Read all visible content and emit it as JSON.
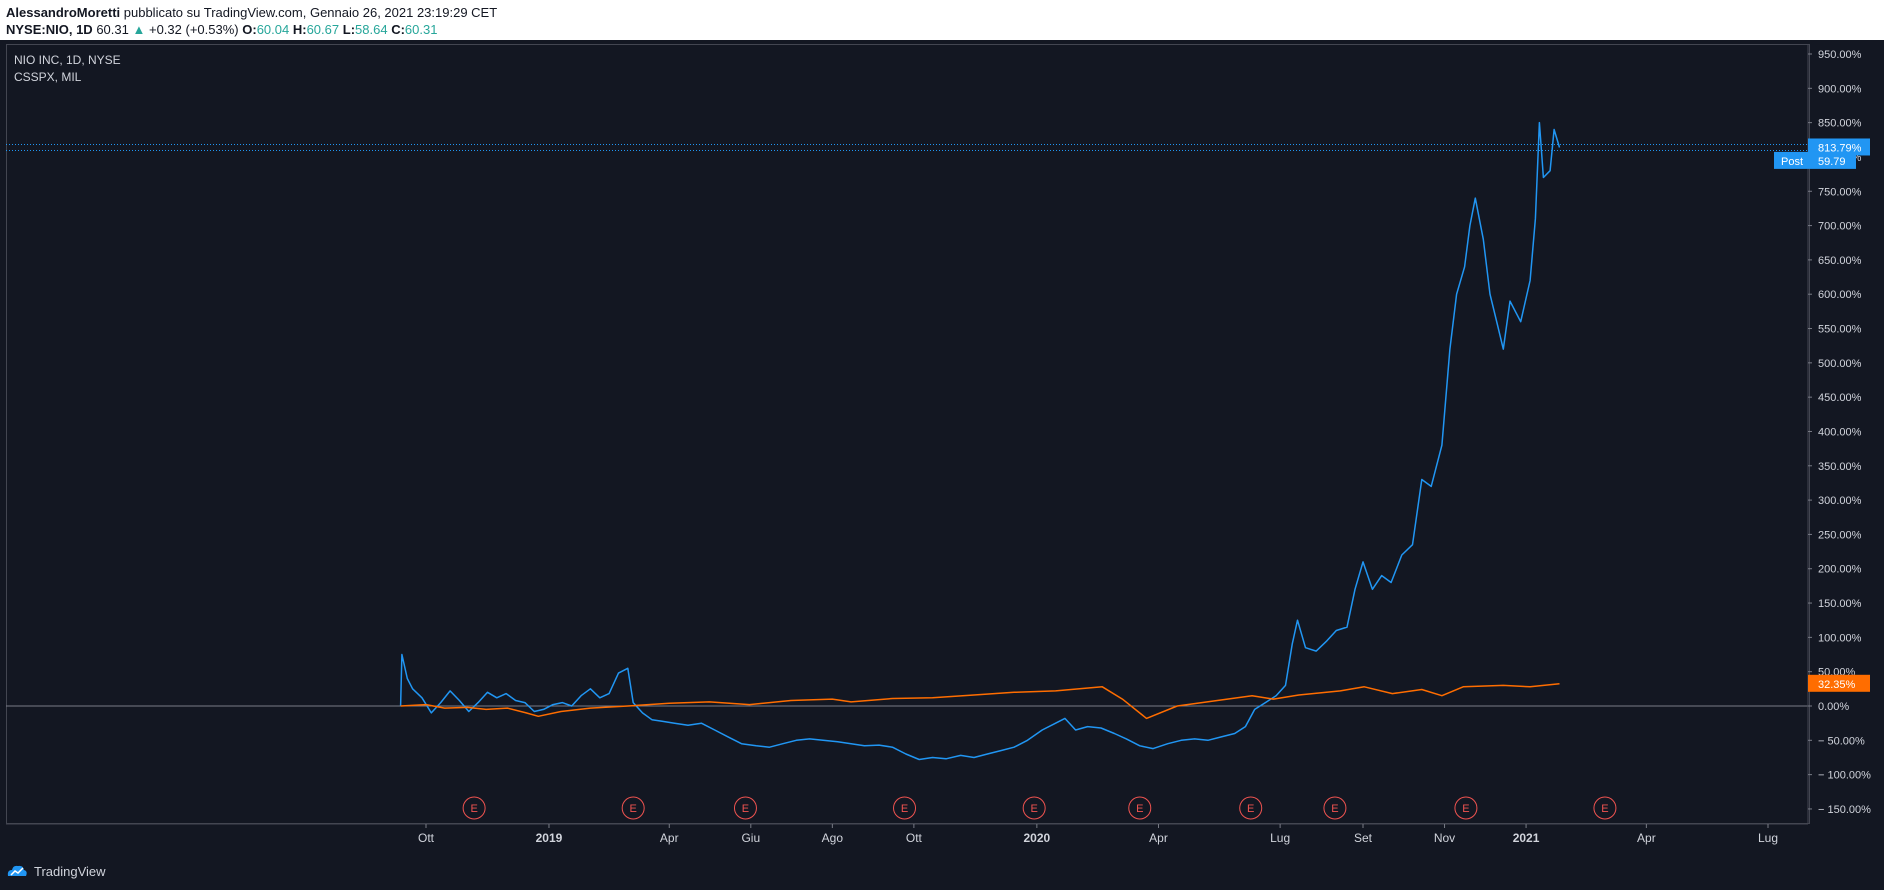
{
  "header": {
    "author": "AlessandroMoretti",
    "published": "pubblicato su TradingView.com, Gennaio 26, 2021 23:19:29 CET",
    "symbol": "NYSE:NIO, 1D",
    "last": "60.31",
    "change": "+0.32 (+0.53%)",
    "o_label": "O:",
    "o_value": "60.04",
    "h_label": "H:",
    "h_value": "60.67",
    "l_label": "L:",
    "l_value": "58.64",
    "c_label": "C:",
    "c_value": "60.31"
  },
  "legend": {
    "main": "NIO INC, 1D, NYSE",
    "compare": "CSSPX, MIL"
  },
  "footer": {
    "brand": "TradingView"
  },
  "colors": {
    "nio": "#2196f3",
    "csspx": "#ff6d00",
    "earnings": "#ef5350",
    "bg": "#131722"
  },
  "chart_data": {
    "type": "line",
    "xlabel": "",
    "ylabel": "",
    "ylim": [
      -170,
      960
    ],
    "y_ticks": [
      950,
      900,
      850,
      800,
      750,
      700,
      650,
      600,
      550,
      500,
      450,
      400,
      350,
      300,
      250,
      200,
      150,
      100,
      50,
      0,
      -50,
      -100,
      -150
    ],
    "y_tick_labels": [
      "950.00%",
      "900.00%",
      "850.00%",
      "800.00%",
      "750.00%",
      "700.00%",
      "650.00%",
      "600.00%",
      "550.00%",
      "500.00%",
      "450.00%",
      "400.00%",
      "350.00%",
      "300.00%",
      "250.00%",
      "200.00%",
      "150.00%",
      "100.00%",
      "50.00%",
      "0.00%",
      "− 50.00%",
      "− 100.00%",
      "− 150.00%"
    ],
    "x_range": [
      "2018-08-01",
      "2021-08-31"
    ],
    "x_ticks": [
      {
        "label": "Ott",
        "date": "2018-10-01",
        "bold": false
      },
      {
        "label": "2019",
        "date": "2019-01-01",
        "bold": true
      },
      {
        "label": "Apr",
        "date": "2019-04-01",
        "bold": false
      },
      {
        "label": "Giu",
        "date": "2019-06-01",
        "bold": false
      },
      {
        "label": "Ago",
        "date": "2019-08-01",
        "bold": false
      },
      {
        "label": "Ott",
        "date": "2019-10-01",
        "bold": false
      },
      {
        "label": "2020",
        "date": "2020-01-01",
        "bold": true
      },
      {
        "label": "Apr",
        "date": "2020-04-01",
        "bold": false
      },
      {
        "label": "Lug",
        "date": "2020-07-01",
        "bold": false
      },
      {
        "label": "Set",
        "date": "2020-09-01",
        "bold": false
      },
      {
        "label": "Nov",
        "date": "2020-11-01",
        "bold": false
      },
      {
        "label": "2021",
        "date": "2021-01-01",
        "bold": true
      },
      {
        "label": "Apr",
        "date": "2021-04-01",
        "bold": false
      },
      {
        "label": "Lug",
        "date": "2021-07-01",
        "bold": false
      }
    ],
    "earnings_marker": "E",
    "earnings_dates": [
      "2018-11-06",
      "2019-03-05",
      "2019-05-28",
      "2019-09-24",
      "2019-12-30",
      "2020-03-18",
      "2020-06-09",
      "2020-08-11",
      "2020-11-17",
      "2021-03-01"
    ],
    "series": [
      {
        "name": "NIO INC",
        "color": "#2196f3",
        "points": [
          [
            "2018-09-12",
            0
          ],
          [
            "2018-09-13",
            75
          ],
          [
            "2018-09-17",
            40
          ],
          [
            "2018-09-21",
            25
          ],
          [
            "2018-09-28",
            12
          ],
          [
            "2018-10-05",
            -10
          ],
          [
            "2018-10-12",
            5
          ],
          [
            "2018-10-19",
            22
          ],
          [
            "2018-10-26",
            8
          ],
          [
            "2018-11-02",
            -8
          ],
          [
            "2018-11-09",
            5
          ],
          [
            "2018-11-16",
            20
          ],
          [
            "2018-11-23",
            12
          ],
          [
            "2018-11-30",
            18
          ],
          [
            "2018-12-07",
            8
          ],
          [
            "2018-12-14",
            5
          ],
          [
            "2018-12-21",
            -8
          ],
          [
            "2018-12-28",
            -5
          ],
          [
            "2019-01-04",
            2
          ],
          [
            "2019-01-11",
            5
          ],
          [
            "2019-01-18",
            0
          ],
          [
            "2019-01-25",
            15
          ],
          [
            "2019-02-01",
            25
          ],
          [
            "2019-02-08",
            12
          ],
          [
            "2019-02-15",
            18
          ],
          [
            "2019-02-22",
            48
          ],
          [
            "2019-03-01",
            55
          ],
          [
            "2019-03-05",
            5
          ],
          [
            "2019-03-12",
            -10
          ],
          [
            "2019-03-19",
            -20
          ],
          [
            "2019-03-26",
            -22
          ],
          [
            "2019-04-05",
            -25
          ],
          [
            "2019-04-15",
            -28
          ],
          [
            "2019-04-25",
            -25
          ],
          [
            "2019-05-05",
            -35
          ],
          [
            "2019-05-15",
            -45
          ],
          [
            "2019-05-25",
            -55
          ],
          [
            "2019-06-05",
            -58
          ],
          [
            "2019-06-15",
            -60
          ],
          [
            "2019-06-25",
            -55
          ],
          [
            "2019-07-05",
            -50
          ],
          [
            "2019-07-15",
            -48
          ],
          [
            "2019-07-25",
            -50
          ],
          [
            "2019-08-05",
            -52
          ],
          [
            "2019-08-15",
            -55
          ],
          [
            "2019-08-25",
            -58
          ],
          [
            "2019-09-05",
            -57
          ],
          [
            "2019-09-15",
            -60
          ],
          [
            "2019-09-25",
            -70
          ],
          [
            "2019-10-05",
            -78
          ],
          [
            "2019-10-15",
            -75
          ],
          [
            "2019-10-25",
            -77
          ],
          [
            "2019-11-05",
            -72
          ],
          [
            "2019-11-15",
            -75
          ],
          [
            "2019-11-25",
            -70
          ],
          [
            "2019-12-05",
            -65
          ],
          [
            "2019-12-15",
            -60
          ],
          [
            "2019-12-25",
            -50
          ],
          [
            "2020-01-05",
            -35
          ],
          [
            "2020-01-15",
            -25
          ],
          [
            "2020-01-22",
            -18
          ],
          [
            "2020-01-30",
            -35
          ],
          [
            "2020-02-08",
            -30
          ],
          [
            "2020-02-18",
            -32
          ],
          [
            "2020-02-28",
            -40
          ],
          [
            "2020-03-08",
            -48
          ],
          [
            "2020-03-18",
            -58
          ],
          [
            "2020-03-28",
            -62
          ],
          [
            "2020-04-08",
            -55
          ],
          [
            "2020-04-18",
            -50
          ],
          [
            "2020-04-28",
            -48
          ],
          [
            "2020-05-08",
            -50
          ],
          [
            "2020-05-18",
            -45
          ],
          [
            "2020-05-28",
            -40
          ],
          [
            "2020-06-05",
            -30
          ],
          [
            "2020-06-12",
            -5
          ],
          [
            "2020-06-20",
            5
          ],
          [
            "2020-06-28",
            15
          ],
          [
            "2020-07-05",
            30
          ],
          [
            "2020-07-10",
            90
          ],
          [
            "2020-07-14",
            125
          ],
          [
            "2020-07-20",
            85
          ],
          [
            "2020-07-28",
            80
          ],
          [
            "2020-08-05",
            95
          ],
          [
            "2020-08-12",
            110
          ],
          [
            "2020-08-20",
            115
          ],
          [
            "2020-08-26",
            170
          ],
          [
            "2020-09-01",
            210
          ],
          [
            "2020-09-08",
            170
          ],
          [
            "2020-09-15",
            190
          ],
          [
            "2020-09-22",
            180
          ],
          [
            "2020-09-30",
            220
          ],
          [
            "2020-10-08",
            235
          ],
          [
            "2020-10-15",
            330
          ],
          [
            "2020-10-22",
            320
          ],
          [
            "2020-10-30",
            380
          ],
          [
            "2020-11-05",
            520
          ],
          [
            "2020-11-10",
            600
          ],
          [
            "2020-11-16",
            640
          ],
          [
            "2020-11-20",
            700
          ],
          [
            "2020-11-24",
            740
          ],
          [
            "2020-11-30",
            680
          ],
          [
            "2020-12-05",
            600
          ],
          [
            "2020-12-10",
            560
          ],
          [
            "2020-12-15",
            520
          ],
          [
            "2020-12-20",
            590
          ],
          [
            "2020-12-28",
            560
          ],
          [
            "2021-01-04",
            620
          ],
          [
            "2021-01-08",
            710
          ],
          [
            "2021-01-11",
            850
          ],
          [
            "2021-01-14",
            770
          ],
          [
            "2021-01-19",
            780
          ],
          [
            "2021-01-22",
            840
          ],
          [
            "2021-01-26",
            813.79
          ]
        ]
      },
      {
        "name": "CSSPX, MIL",
        "color": "#ff6d00",
        "points": [
          [
            "2018-09-12",
            0
          ],
          [
            "2018-10-01",
            2
          ],
          [
            "2018-10-15",
            -3
          ],
          [
            "2018-11-01",
            -2
          ],
          [
            "2018-11-15",
            -5
          ],
          [
            "2018-12-01",
            -3
          ],
          [
            "2018-12-15",
            -10
          ],
          [
            "2018-12-24",
            -15
          ],
          [
            "2019-01-10",
            -8
          ],
          [
            "2019-02-01",
            -3
          ],
          [
            "2019-03-01",
            0
          ],
          [
            "2019-04-01",
            4
          ],
          [
            "2019-05-01",
            6
          ],
          [
            "2019-05-31",
            2
          ],
          [
            "2019-07-01",
            8
          ],
          [
            "2019-08-01",
            10
          ],
          [
            "2019-08-15",
            6
          ],
          [
            "2019-09-15",
            11
          ],
          [
            "2019-10-15",
            12
          ],
          [
            "2019-11-15",
            16
          ],
          [
            "2019-12-15",
            20
          ],
          [
            "2020-01-15",
            22
          ],
          [
            "2020-02-19",
            28
          ],
          [
            "2020-03-05",
            10
          ],
          [
            "2020-03-23",
            -18
          ],
          [
            "2020-04-15",
            0
          ],
          [
            "2020-05-15",
            8
          ],
          [
            "2020-06-10",
            15
          ],
          [
            "2020-06-26",
            10
          ],
          [
            "2020-07-15",
            16
          ],
          [
            "2020-08-15",
            22
          ],
          [
            "2020-09-02",
            28
          ],
          [
            "2020-09-23",
            18
          ],
          [
            "2020-10-15",
            24
          ],
          [
            "2020-10-30",
            15
          ],
          [
            "2020-11-15",
            28
          ],
          [
            "2020-12-15",
            30
          ],
          [
            "2021-01-04",
            28
          ],
          [
            "2021-01-26",
            32.35
          ]
        ]
      }
    ],
    "price_badges": [
      {
        "text": "813.79%",
        "value": 813.79,
        "color": "#2196f3"
      },
      {
        "text": "32.35%",
        "value": 32.35,
        "color": "#ff6d00"
      }
    ],
    "post_badge": {
      "label": "Post",
      "price": "59.79",
      "value": 803
    }
  }
}
